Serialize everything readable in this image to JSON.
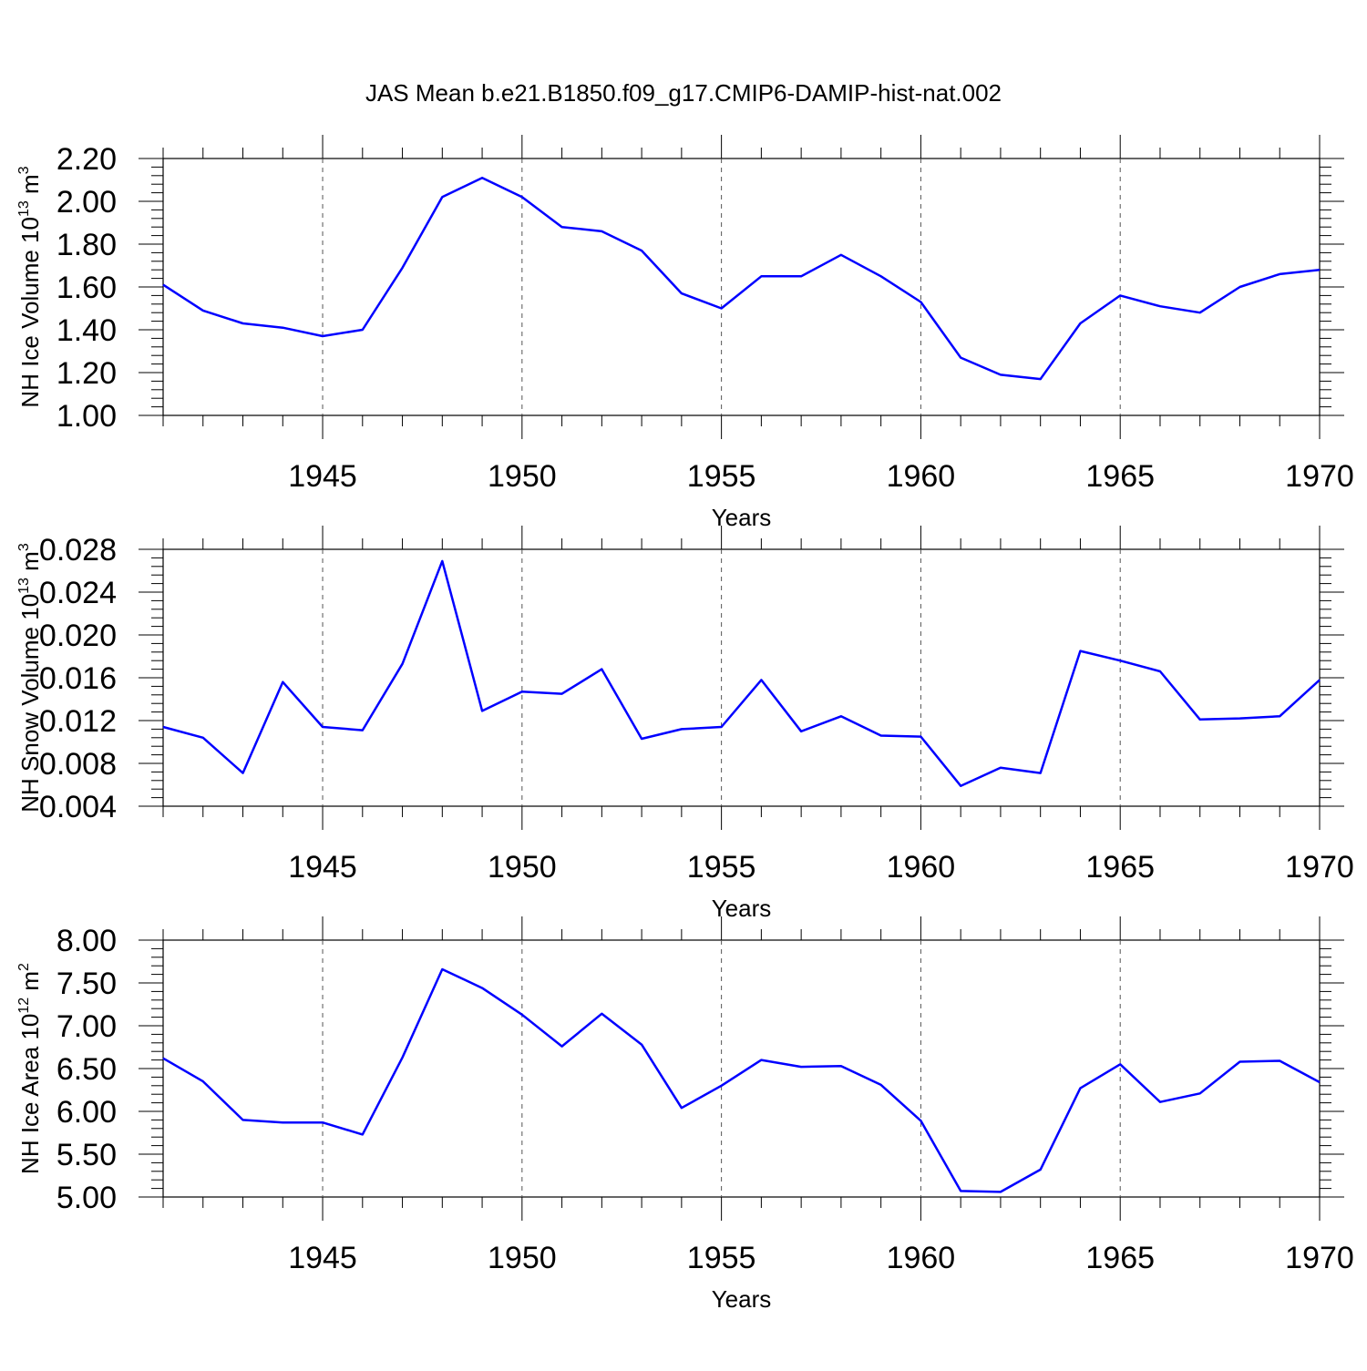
{
  "title": "JAS Mean b.e21.B1850.f09_g17.CMIP6-DAMIP-hist-nat.002",
  "line_color": "#0000ff",
  "chart_data": [
    {
      "type": "line",
      "ylabel": "NH Ice Volume 10",
      "ylabel_sup": "13",
      "ylabel_unit": "m",
      "ylabel_unit_sup": "3",
      "xlabel": "Years",
      "xlim": [
        1941,
        1970
      ],
      "ylim": [
        1.0,
        2.2
      ],
      "yticks": [
        "1.00",
        "1.20",
        "1.40",
        "1.60",
        "1.80",
        "2.00",
        "2.20"
      ],
      "xticks": [
        "1945",
        "1950",
        "1955",
        "1960",
        "1965",
        "1970"
      ],
      "x": [
        1941,
        1942,
        1943,
        1944,
        1945,
        1946,
        1947,
        1948,
        1949,
        1950,
        1951,
        1952,
        1953,
        1954,
        1955,
        1956,
        1957,
        1958,
        1959,
        1960,
        1961,
        1962,
        1963,
        1964,
        1965,
        1966,
        1967,
        1968,
        1969,
        1970
      ],
      "values": [
        1.61,
        1.49,
        1.43,
        1.41,
        1.37,
        1.4,
        1.69,
        2.02,
        2.11,
        2.02,
        1.88,
        1.86,
        1.77,
        1.57,
        1.5,
        1.65,
        1.65,
        1.75,
        1.65,
        1.53,
        1.27,
        1.19,
        1.17,
        1.43,
        1.56,
        1.51,
        1.48,
        1.6,
        1.66,
        1.68
      ]
    },
    {
      "type": "line",
      "ylabel": "NH Snow Volume 10",
      "ylabel_sup": "13",
      "ylabel_unit": "m",
      "ylabel_unit_sup": "3",
      "xlabel": "Years",
      "xlim": [
        1941,
        1970
      ],
      "ylim": [
        0.004,
        0.028
      ],
      "yticks": [
        "0.004",
        "0.008",
        "0.012",
        "0.016",
        "0.020",
        "0.024",
        "0.028"
      ],
      "xticks": [
        "1945",
        "1950",
        "1955",
        "1960",
        "1965",
        "1970"
      ],
      "x": [
        1941,
        1942,
        1943,
        1944,
        1945,
        1946,
        1947,
        1948,
        1949,
        1950,
        1951,
        1952,
        1953,
        1954,
        1955,
        1956,
        1957,
        1958,
        1959,
        1960,
        1961,
        1962,
        1963,
        1964,
        1965,
        1966,
        1967,
        1968,
        1969,
        1970
      ],
      "values": [
        0.0114,
        0.0104,
        0.0071,
        0.0156,
        0.0114,
        0.0111,
        0.0173,
        0.0269,
        0.0129,
        0.0147,
        0.0145,
        0.0168,
        0.0103,
        0.0112,
        0.0114,
        0.0158,
        0.011,
        0.0124,
        0.0106,
        0.0105,
        0.0059,
        0.0076,
        0.0071,
        0.0185,
        0.0176,
        0.0166,
        0.0121,
        0.0122,
        0.0124,
        0.0158
      ]
    },
    {
      "type": "line",
      "ylabel": "NH Ice Area 10",
      "ylabel_sup": "12",
      "ylabel_unit": "m",
      "ylabel_unit_sup": "2",
      "xlabel": "Years",
      "xlim": [
        1941,
        1970
      ],
      "ylim": [
        5.0,
        8.0
      ],
      "yticks": [
        "5.00",
        "5.50",
        "6.00",
        "6.50",
        "7.00",
        "7.50",
        "8.00"
      ],
      "xticks": [
        "1945",
        "1950",
        "1955",
        "1960",
        "1965",
        "1970"
      ],
      "x": [
        1941,
        1942,
        1943,
        1944,
        1945,
        1946,
        1947,
        1948,
        1949,
        1950,
        1951,
        1952,
        1953,
        1954,
        1955,
        1956,
        1957,
        1958,
        1959,
        1960,
        1961,
        1962,
        1963,
        1964,
        1965,
        1966,
        1967,
        1968,
        1969,
        1970
      ],
      "values": [
        6.62,
        6.35,
        5.9,
        5.87,
        5.87,
        5.73,
        6.63,
        7.66,
        7.44,
        7.13,
        6.76,
        7.14,
        6.78,
        6.04,
        6.3,
        6.6,
        6.52,
        6.53,
        6.31,
        5.89,
        5.07,
        5.06,
        5.32,
        6.27,
        6.55,
        6.11,
        6.21,
        6.58,
        6.59,
        6.34
      ]
    }
  ]
}
